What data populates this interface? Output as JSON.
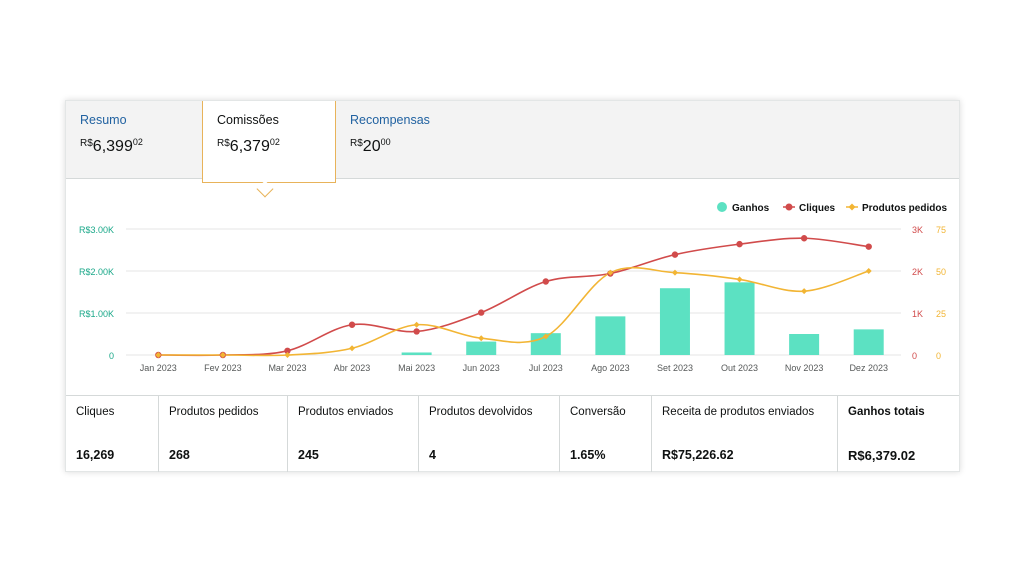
{
  "tabs": [
    {
      "label": "Resumo",
      "currency": "R$",
      "whole": "6,399",
      "fraction": "02"
    },
    {
      "label": "Comissões",
      "currency": "R$",
      "whole": "6,379",
      "fraction": "02"
    },
    {
      "label": "Recompensas",
      "currency": "R$",
      "whole": "20",
      "fraction": "00"
    }
  ],
  "metrics": [
    {
      "label": "Cliques",
      "value": "16,269"
    },
    {
      "label": "Produtos pedidos",
      "value": "268"
    },
    {
      "label": "Produtos enviados",
      "value": "245"
    },
    {
      "label": "Produtos devolvidos",
      "value": "4"
    },
    {
      "label": "Conversão",
      "value": "1.65%"
    },
    {
      "label": "Receita de produtos enviados",
      "value": "R$75,226.62"
    },
    {
      "label": "Ganhos totais",
      "value": "R$6,379.02"
    }
  ],
  "colors": {
    "ganhos": "#5ce1c2",
    "cliques": "#d14b4b",
    "produtos": "#f2b534",
    "ganhos_axis": "#1aa889"
  },
  "chart_data": {
    "type": "bar",
    "categories": [
      "Jan 2023",
      "Fev 2023",
      "Mar 2023",
      "Abr 2023",
      "Mai 2023",
      "Jun 2023",
      "Jul 2023",
      "Ago 2023",
      "Set 2023",
      "Out 2023",
      "Nov 2023",
      "Dez 2023"
    ],
    "series": [
      {
        "name": "Ganhos",
        "type": "bar",
        "axis": "left",
        "values": [
          0,
          0,
          0,
          0,
          60,
          320,
          520,
          920,
          1590,
          1730,
          500,
          610
        ]
      },
      {
        "name": "Cliques",
        "type": "line",
        "axis": "right1",
        "values": [
          0,
          0,
          100,
          720,
          560,
          1010,
          1750,
          1940,
          2390,
          2640,
          2780,
          2580
        ]
      },
      {
        "name": "Produtos pedidos",
        "type": "line",
        "axis": "right2",
        "values": [
          0,
          0,
          0,
          4,
          18,
          10,
          11,
          49,
          49,
          45,
          38,
          50
        ]
      }
    ],
    "y_left": {
      "ticks": [
        "0",
        "R$1.00K",
        "R$2.00K",
        "R$3.00K"
      ],
      "range": [
        0,
        3000
      ]
    },
    "y_right1": {
      "ticks": [
        "0",
        "1K",
        "2K",
        "3K"
      ],
      "range": [
        0,
        3000
      ]
    },
    "y_right2": {
      "ticks": [
        "0",
        "25",
        "50",
        "75"
      ],
      "range": [
        0,
        75
      ]
    },
    "legend_placement": "top-right",
    "grid": true
  }
}
